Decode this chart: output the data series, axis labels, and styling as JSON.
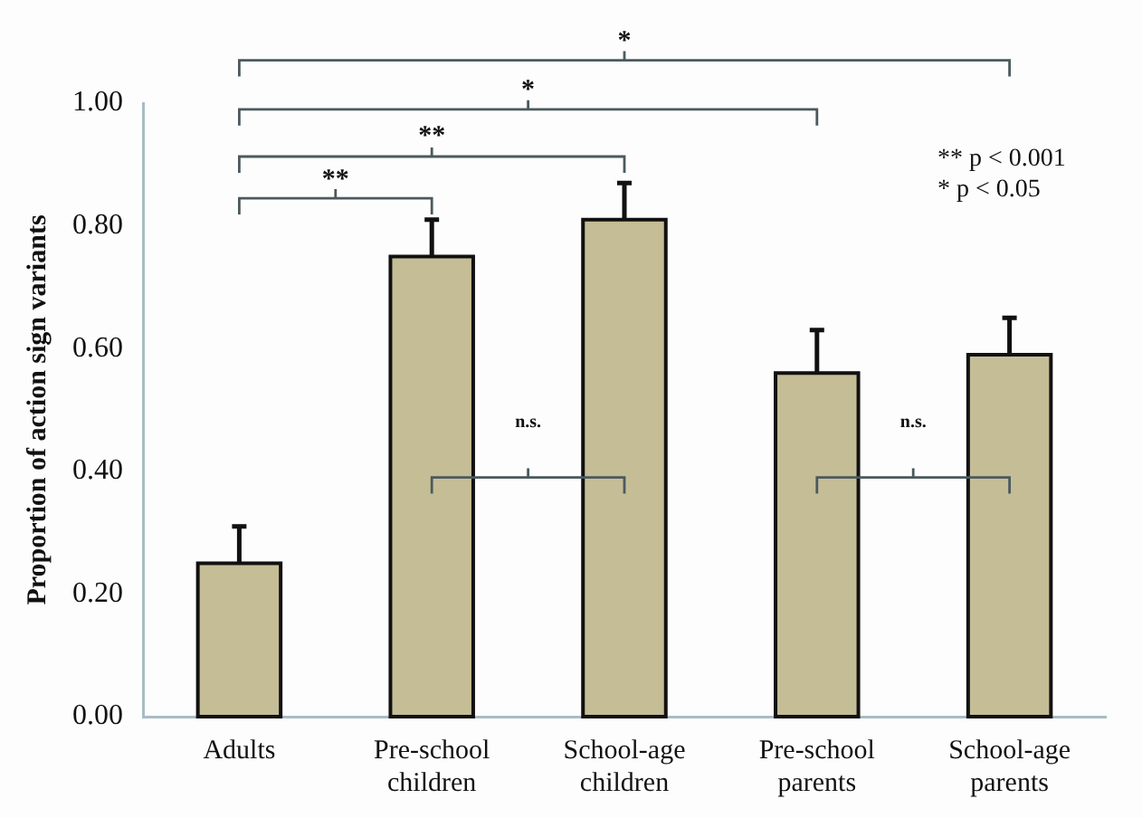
{
  "chart_data": {
    "type": "bar",
    "ylabel": "Proportion of action sign variants",
    "categories": [
      "Adults",
      "Pre-school children",
      "School-age children",
      "Pre-school parents",
      "School-age parents"
    ],
    "values": [
      0.25,
      0.75,
      0.81,
      0.56,
      0.59
    ],
    "errors": [
      [
        0.25,
        0.31
      ],
      [
        0.75,
        0.81
      ],
      [
        0.81,
        0.87
      ],
      [
        0.56,
        0.63
      ],
      [
        0.59,
        0.65
      ]
    ],
    "color": "#c5bd96",
    "ylim": [
      0,
      1
    ],
    "yticks": [
      {
        "value": 0,
        "label": "0.00"
      },
      {
        "value": 0.2,
        "label": "0.20"
      },
      {
        "value": 0.4,
        "label": "0.40"
      },
      {
        "value": 0.6,
        "label": "0.60"
      },
      {
        "value": 0.8,
        "label": "0.80"
      },
      {
        "value": 1,
        "label": "1.00"
      }
    ],
    "annotations": [
      "**",
      "**",
      "*",
      "*",
      "n.s.",
      "n.s.",
      "** p < 0.001",
      "* p < 0.05"
    ],
    "grid": false,
    "legend": false
  }
}
